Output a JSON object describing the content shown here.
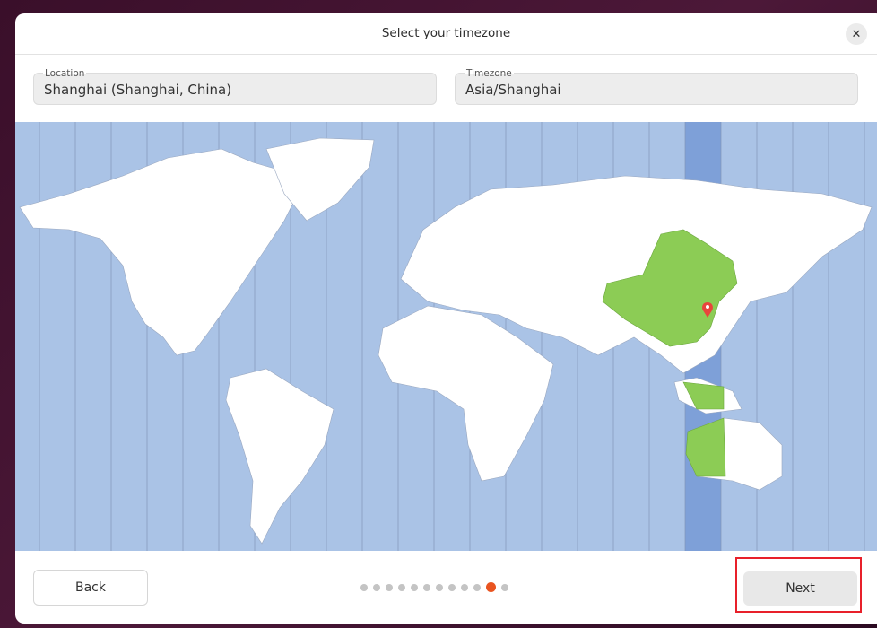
{
  "dialog": {
    "title": "Select your timezone",
    "close_icon": "close-icon"
  },
  "location": {
    "label": "Location",
    "value": "Shanghai (Shanghai, China)"
  },
  "timezone": {
    "label": "Timezone",
    "value": "Asia/Shanghai"
  },
  "map": {
    "selected_timezone": "Asia/Shanghai",
    "colors": {
      "ocean": "#aac3e6",
      "land": "#ffffff",
      "selected_region": "#8ccc55",
      "selected_band": "#7ea0d8",
      "pin": "#e8453c"
    }
  },
  "footer": {
    "back_label": "Back",
    "next_label": "Next",
    "steps_total": 12,
    "current_step": 11,
    "accent": "#e95420"
  }
}
